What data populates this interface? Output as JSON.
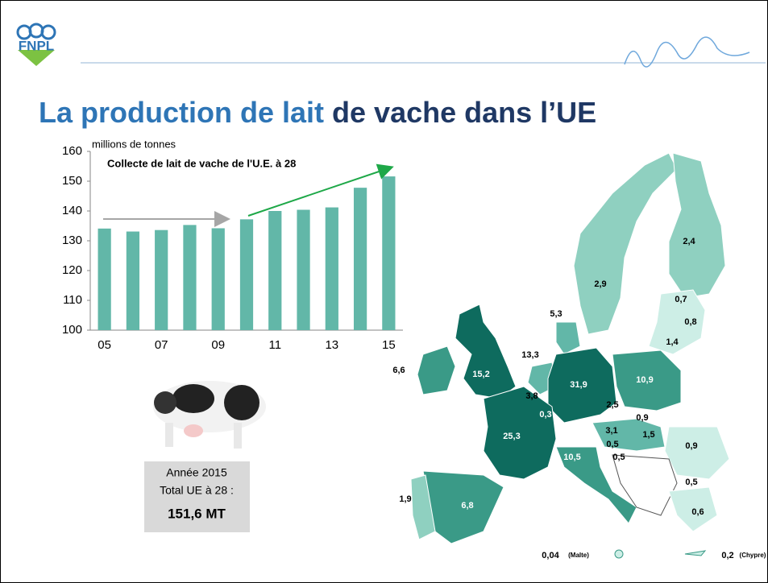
{
  "slide": {
    "logo": "FNPL",
    "title_part1": "La production de lait",
    "title_part2": "de vache dans l’UE"
  },
  "chart_data": {
    "type": "bar",
    "subtitle": "millions de tonnes",
    "title": "Collecte de lait de vache de l'U.E. à 28",
    "categories": [
      "05",
      null,
      "07",
      null,
      "09",
      null,
      "11",
      null,
      "13",
      null,
      "15"
    ],
    "values": [
      134.1,
      133.1,
      133.6,
      135.3,
      134.2,
      137.2,
      140.0,
      140.4,
      141.2,
      147.8,
      151.6
    ],
    "color": "#62b7a8",
    "ylim": [
      100,
      160
    ],
    "yticks": [
      100,
      110,
      120,
      130,
      140,
      150,
      160
    ],
    "grid": false
  },
  "summary": {
    "line1": "Année 2015",
    "line2": "Total UE à 28 :",
    "line3": "151,6  MT"
  },
  "map": {
    "labels": [
      "2,4",
      "2,9",
      "0,7",
      "0,8",
      "1,4",
      "5,3",
      "13,3",
      "6,6",
      "15,2",
      "31,9",
      "10,9",
      "3,8",
      "2,5",
      "0,3",
      "0,9",
      "3,1",
      "1,5",
      "0,5",
      "0,5",
      "0,9",
      "25,3",
      "10,5",
      "0,5",
      "1,9",
      "6,8",
      "0,6",
      "0,04",
      "(Malte)",
      "0,2",
      "(Chypre)"
    ]
  }
}
